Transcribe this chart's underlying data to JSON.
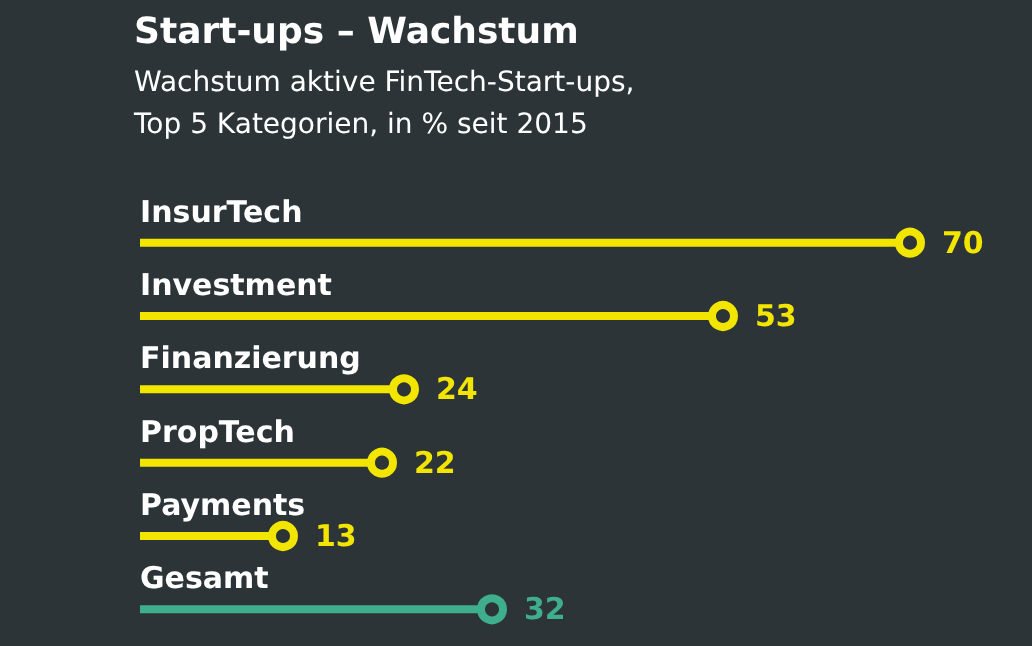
{
  "chart_data": {
    "type": "lollipop",
    "orientation": "horizontal",
    "title": "Start-ups – Wachstum",
    "subtitle": "Wachstum aktive FinTech-Start-ups,\nTop 5 Kategorien, in % seit 2015",
    "categories": [
      "InsurTech",
      "Investment",
      "Finanzierung",
      "PropTech",
      "Payments",
      "Gesamt"
    ],
    "values": [
      70,
      53,
      24,
      22,
      13,
      32
    ],
    "colors": [
      "#f2e500",
      "#f2e500",
      "#f2e500",
      "#f2e500",
      "#f2e500",
      "#3fae8c"
    ],
    "data_labels": true,
    "marker": "circle"
  }
}
